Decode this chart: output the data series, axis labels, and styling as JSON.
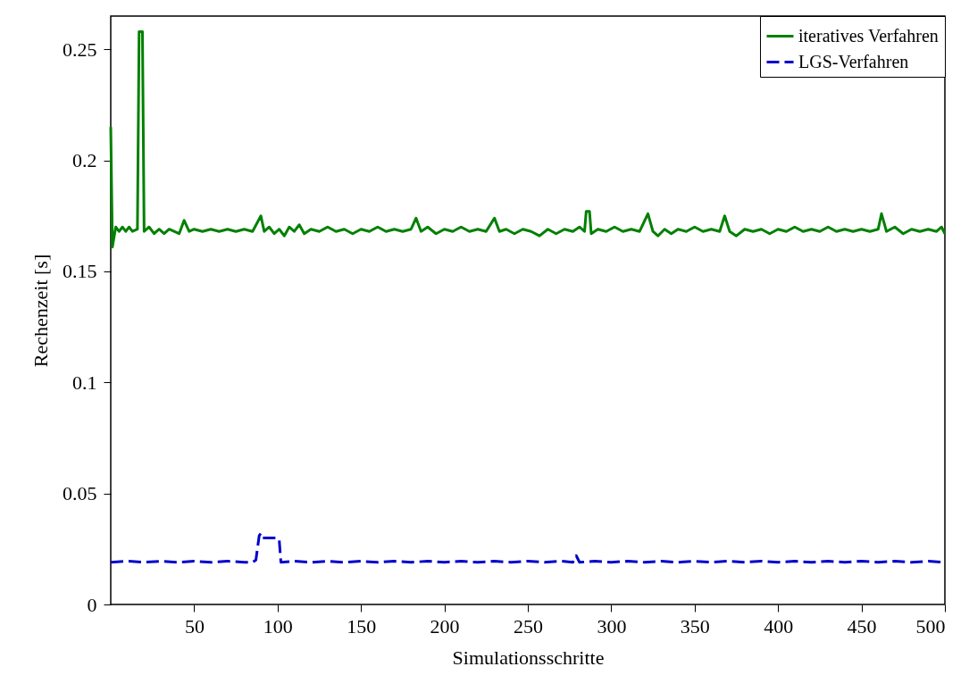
{
  "chart_data": {
    "type": "line",
    "xlabel": "Simulationsschritte",
    "ylabel": "Rechenzeit [s]",
    "xlim": [
      0,
      500
    ],
    "xticks": [
      50,
      100,
      150,
      200,
      250,
      300,
      350,
      400,
      450,
      500
    ],
    "ylim": [
      0,
      0.265
    ],
    "yticks": [
      0,
      0.05,
      0.1,
      0.15,
      0.2,
      0.25
    ],
    "legend": "top right",
    "grid": false,
    "marker": "none",
    "series": [
      {
        "name": "iteratives Verfahren",
        "color": "#008000",
        "line_style": "solid",
        "x": [
          0,
          1,
          3,
          5,
          7,
          9,
          11,
          13,
          16,
          17,
          19,
          20,
          23,
          26,
          29,
          32,
          35,
          38,
          41,
          44,
          47,
          50,
          55,
          60,
          65,
          70,
          75,
          80,
          85,
          90,
          92,
          95,
          98,
          101,
          104,
          107,
          110,
          113,
          116,
          120,
          125,
          130,
          135,
          140,
          145,
          150,
          155,
          160,
          165,
          170,
          175,
          180,
          183,
          186,
          190,
          195,
          200,
          205,
          210,
          215,
          220,
          225,
          230,
          233,
          237,
          242,
          247,
          252,
          257,
          262,
          267,
          272,
          277,
          281,
          284,
          285,
          287,
          288,
          292,
          297,
          302,
          307,
          312,
          317,
          322,
          325,
          328,
          332,
          336,
          340,
          345,
          350,
          355,
          360,
          365,
          368,
          371,
          375,
          380,
          385,
          390,
          395,
          400,
          405,
          410,
          415,
          420,
          425,
          430,
          435,
          440,
          445,
          450,
          455,
          460,
          462,
          465,
          470,
          475,
          480,
          485,
          490,
          495,
          498,
          500
        ],
        "values": [
          0.215,
          0.161,
          0.17,
          0.168,
          0.17,
          0.168,
          0.17,
          0.168,
          0.169,
          0.258,
          0.258,
          0.168,
          0.17,
          0.167,
          0.169,
          0.167,
          0.169,
          0.168,
          0.167,
          0.173,
          0.168,
          0.169,
          0.168,
          0.169,
          0.168,
          0.169,
          0.168,
          0.169,
          0.168,
          0.175,
          0.168,
          0.17,
          0.167,
          0.169,
          0.166,
          0.17,
          0.168,
          0.171,
          0.167,
          0.169,
          0.168,
          0.17,
          0.168,
          0.169,
          0.167,
          0.169,
          0.168,
          0.17,
          0.168,
          0.169,
          0.168,
          0.169,
          0.174,
          0.168,
          0.17,
          0.167,
          0.169,
          0.168,
          0.17,
          0.168,
          0.169,
          0.168,
          0.174,
          0.168,
          0.169,
          0.167,
          0.169,
          0.168,
          0.166,
          0.169,
          0.167,
          0.169,
          0.168,
          0.17,
          0.168,
          0.177,
          0.177,
          0.167,
          0.169,
          0.168,
          0.17,
          0.168,
          0.169,
          0.168,
          0.176,
          0.168,
          0.166,
          0.169,
          0.167,
          0.169,
          0.168,
          0.17,
          0.168,
          0.169,
          0.168,
          0.175,
          0.168,
          0.166,
          0.169,
          0.168,
          0.169,
          0.167,
          0.169,
          0.168,
          0.17,
          0.168,
          0.169,
          0.168,
          0.17,
          0.168,
          0.169,
          0.168,
          0.169,
          0.168,
          0.169,
          0.176,
          0.168,
          0.17,
          0.167,
          0.169,
          0.168,
          0.169,
          0.168,
          0.17,
          0.167
        ]
      },
      {
        "name": "LGS-Verfahren",
        "color": "#0000cc",
        "line_style": "dashed",
        "x": [
          0,
          10,
          20,
          30,
          40,
          50,
          60,
          70,
          80,
          85,
          87,
          89,
          90,
          91,
          95,
          100,
          101,
          102,
          110,
          120,
          130,
          140,
          150,
          160,
          170,
          180,
          190,
          200,
          210,
          220,
          230,
          240,
          250,
          260,
          270,
          277,
          279,
          281,
          290,
          300,
          310,
          320,
          330,
          340,
          350,
          360,
          370,
          380,
          390,
          400,
          410,
          420,
          430,
          440,
          450,
          460,
          470,
          480,
          490,
          500
        ],
        "values": [
          0.019,
          0.0195,
          0.019,
          0.0195,
          0.019,
          0.0195,
          0.019,
          0.0195,
          0.019,
          0.019,
          0.02,
          0.031,
          0.032,
          0.03,
          0.03,
          0.03,
          0.029,
          0.019,
          0.0195,
          0.019,
          0.0195,
          0.019,
          0.0195,
          0.019,
          0.0195,
          0.019,
          0.0195,
          0.019,
          0.0195,
          0.019,
          0.0195,
          0.019,
          0.0195,
          0.019,
          0.0195,
          0.019,
          0.022,
          0.019,
          0.0195,
          0.019,
          0.0195,
          0.019,
          0.0195,
          0.019,
          0.0195,
          0.019,
          0.0195,
          0.019,
          0.0195,
          0.019,
          0.0195,
          0.019,
          0.0195,
          0.019,
          0.0195,
          0.019,
          0.0195,
          0.019,
          0.0195,
          0.019
        ]
      }
    ]
  }
}
